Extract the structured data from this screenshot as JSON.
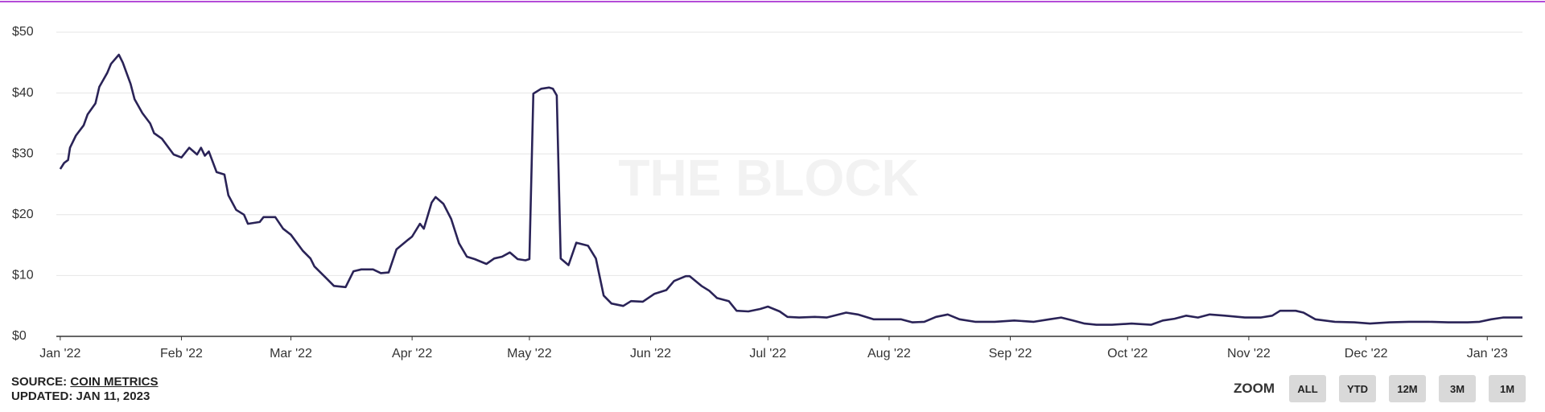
{
  "chart_data": {
    "type": "line",
    "watermark": "THE BLOCK",
    "x": [
      0,
      1,
      2,
      2.5,
      4,
      6,
      7,
      9,
      10,
      12,
      13,
      15,
      16,
      18,
      19,
      21,
      23,
      24,
      26,
      29,
      31,
      33,
      35,
      36,
      37,
      38,
      40,
      42,
      43,
      45,
      47,
      48,
      51,
      52,
      55,
      57,
      59,
      62,
      64,
      65,
      68,
      70,
      73,
      75,
      77,
      80,
      82,
      84,
      86,
      89,
      90,
      92,
      93,
      95,
      96,
      98,
      100,
      102,
      104,
      106,
      109,
      111,
      113,
      115,
      117,
      119,
      120,
      121,
      123,
      125,
      126,
      127,
      128,
      130,
      132,
      135,
      137,
      139,
      141,
      144,
      146,
      149,
      152,
      155,
      157,
      160,
      161,
      164,
      166,
      168,
      171,
      173,
      176,
      179,
      181,
      184,
      186,
      189,
      193,
      196,
      201,
      204,
      208,
      212,
      215,
      218,
      221,
      224,
      227,
      230,
      234,
      239,
      244,
      249,
      253,
      256,
      259,
      262,
      265,
      269,
      274,
      279,
      282,
      285,
      288,
      291,
      294,
      298,
      303,
      307,
      310,
      312,
      316,
      318,
      321,
      326,
      331,
      335,
      340,
      345,
      350,
      355,
      360,
      363,
      366,
      369,
      374
    ],
    "series": [
      {
        "name": "Value",
        "color": "#2a2357",
        "values": [
          27.5,
          28.5,
          29,
          31,
          33,
          34.7,
          36.5,
          38.3,
          41,
          43.3,
          44.8,
          46.3,
          45,
          41.5,
          39,
          36.7,
          35,
          33.4,
          32.5,
          29.9,
          29.4,
          31,
          29.9,
          31,
          29.7,
          30.4,
          27,
          26.6,
          23.2,
          20.8,
          20,
          18.5,
          18.8,
          19.6,
          19.6,
          17.7,
          16.7,
          14.1,
          12.8,
          11.5,
          9.6,
          8.3,
          8.1,
          10.7,
          11,
          11,
          10.4,
          10.5,
          14.3,
          15.9,
          16.4,
          18.5,
          17.7,
          22,
          22.9,
          21.8,
          19.3,
          15.3,
          13.1,
          12.7,
          11.9,
          12.8,
          13.1,
          13.8,
          12.7,
          12.5,
          12.7,
          39.9,
          40.7,
          40.9,
          40.7,
          39.6,
          12.8,
          11.7,
          15.4,
          14.9,
          12.8,
          6.7,
          5.4,
          5,
          5.8,
          5.7,
          7,
          7.6,
          9.1,
          9.9,
          9.9,
          8.3,
          7.5,
          6.3,
          5.8,
          4.2,
          4.1,
          4.5,
          4.9,
          4.1,
          3.2,
          3.1,
          3.2,
          3.1,
          3.9,
          3.6,
          2.8,
          2.8,
          2.8,
          2.3,
          2.4,
          3.2,
          3.6,
          2.8,
          2.4,
          2.4,
          2.6,
          2.4,
          2.8,
          3.1,
          2.6,
          2.1,
          1.9,
          1.9,
          2.1,
          1.9,
          2.6,
          2.9,
          3.4,
          3.1,
          3.6,
          3.4,
          3.1,
          3.1,
          3.4,
          4.2,
          4.2,
          3.9,
          2.8,
          2.4,
          2.3,
          2.1,
          2.3,
          2.4,
          2.4,
          2.3,
          2.3,
          2.4,
          2.8,
          3.1,
          3.1
        ]
      }
    ],
    "xlim": [
      -1,
      374
    ],
    "xticks": [
      {
        "value": 0,
        "label": "Jan '22"
      },
      {
        "value": 31,
        "label": "Feb '22"
      },
      {
        "value": 59,
        "label": "Mar '22"
      },
      {
        "value": 90,
        "label": "Apr '22"
      },
      {
        "value": 120,
        "label": "May '22"
      },
      {
        "value": 151,
        "label": "Jun '22"
      },
      {
        "value": 181,
        "label": "Jul '22"
      },
      {
        "value": 212,
        "label": "Aug '22"
      },
      {
        "value": 243,
        "label": "Sep '22"
      },
      {
        "value": 273,
        "label": "Oct '22"
      },
      {
        "value": 304,
        "label": "Nov '22"
      },
      {
        "value": 334,
        "label": "Dec '22"
      },
      {
        "value": 365,
        "label": "Jan '23"
      }
    ],
    "ylim": [
      0,
      50
    ],
    "yticks": [
      {
        "value": 0,
        "label": "$0"
      },
      {
        "value": 10,
        "label": "$10"
      },
      {
        "value": 20,
        "label": "$20"
      },
      {
        "value": 30,
        "label": "$30"
      },
      {
        "value": 40,
        "label": "$40"
      },
      {
        "value": 50,
        "label": "$50"
      }
    ],
    "grid": true
  },
  "footer": {
    "source_label": "SOURCE:",
    "source_name": "COIN METRICS",
    "updated": "UPDATED: JAN 11, 2023"
  },
  "zoom": {
    "label": "ZOOM",
    "buttons": [
      "ALL",
      "YTD",
      "12M",
      "3M",
      "1M"
    ]
  }
}
